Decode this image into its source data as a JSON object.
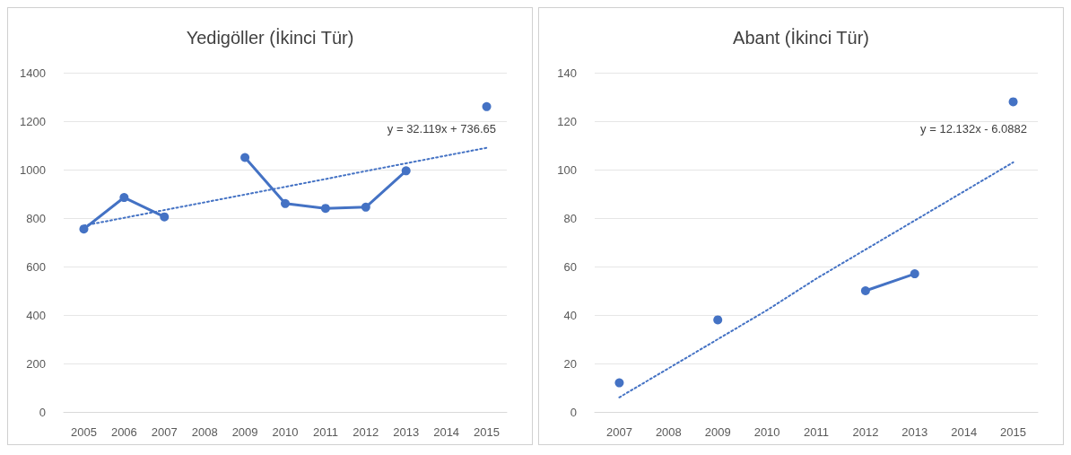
{
  "chart_data": [
    {
      "type": "line",
      "title": "Yedigöller (İkinci Tür)",
      "categories": [
        "2005",
        "2006",
        "2007",
        "2008",
        "2009",
        "2010",
        "2011",
        "2012",
        "2013",
        "2014",
        "2015"
      ],
      "series": [
        {
          "color": "#4472c4",
          "values": [
            755,
            885,
            805,
            null,
            1050,
            860,
            840,
            845,
            995,
            null,
            1260
          ],
          "marker": "circle",
          "line_style": "solid"
        },
        {
          "color": "#4472c4",
          "values": [
            769,
            801,
            833,
            865,
            897,
            929,
            961,
            994,
            1026,
            1058,
            1090
          ],
          "marker": "none",
          "line_style": "dotted"
        }
      ],
      "ylim": [
        0,
        1400
      ],
      "yticks": [
        0,
        200,
        400,
        600,
        800,
        1000,
        1200,
        1400
      ],
      "grid": "y",
      "annotations": [
        "y = 32.119x + 736.65"
      ]
    },
    {
      "type": "line",
      "title": "Abant (İkinci Tür)",
      "categories": [
        "2007",
        "2008",
        "2009",
        "2010",
        "2011",
        "2012",
        "2013",
        "2014",
        "2015"
      ],
      "series": [
        {
          "color": "#4472c4",
          "values": [
            12,
            null,
            38,
            null,
            null,
            50,
            57,
            null,
            128
          ],
          "marker": "circle",
          "line_style": "solid"
        },
        {
          "color": "#4472c4",
          "values": [
            6,
            18,
            30,
            42,
            55,
            67,
            79,
            91,
            103
          ],
          "marker": "none",
          "line_style": "dotted"
        }
      ],
      "ylim": [
        0,
        140
      ],
      "yticks": [
        0,
        20,
        40,
        60,
        80,
        100,
        120,
        140
      ],
      "grid": "y",
      "annotations": [
        "y = 12.132x - 6.0882"
      ]
    }
  ]
}
